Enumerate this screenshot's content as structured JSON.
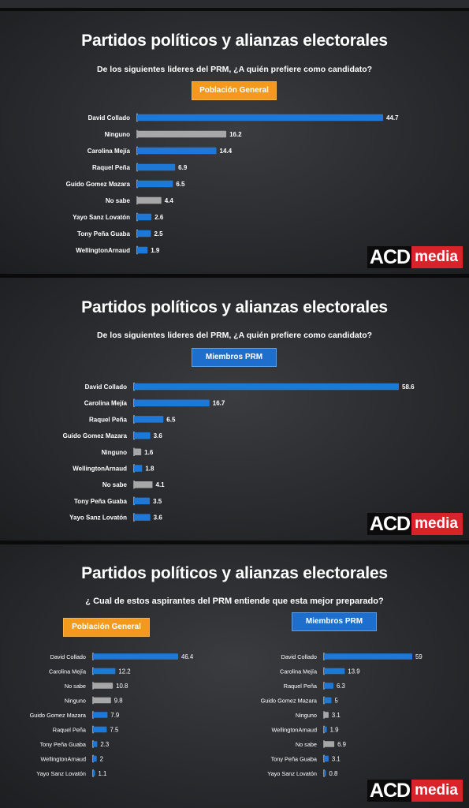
{
  "panels": [
    {
      "title": "Partidos políticos y alianzas electorales",
      "question": "De los siguientes lideres del PRM, ¿A quién prefiere como candidato?",
      "logo": {
        "brand": "ACD",
        "suffix": "media"
      }
    },
    {
      "title": "Partidos políticos y alianzas electorales",
      "question": "De los siguientes lideres del PRM, ¿A quién prefiere como candidato?",
      "logo": {
        "brand": "ACD",
        "suffix": "media"
      }
    },
    {
      "title": "Partidos políticos y alianzas electorales",
      "question": "¿ Cual de estos aspirantes del PRM entiende que esta mejor preparado?",
      "logo": {
        "brand": "ACD",
        "suffix": "media"
      }
    }
  ],
  "colors": {
    "blue": "#1e78d8",
    "gray": "#a7a7a7",
    "orange": "#f39a1d",
    "red": "#d8232a"
  },
  "chart_data": [
    {
      "type": "bar",
      "orientation": "horizontal",
      "segment": "Población General",
      "categories": [
        "David Collado",
        "Ninguno",
        "Carolina Mejía",
        "Raquel Peña",
        "Guido Gomez Mazara",
        "No sabe",
        "Yayo Sanz Lovatón",
        "Tony Peña Guaba",
        "WellingtonArnaud"
      ],
      "values": [
        44.7,
        16.2,
        14.4,
        6.9,
        6.5,
        4.4,
        2.6,
        2.5,
        1.9
      ],
      "value_labels": [
        "44.7",
        "16.2",
        "14.4",
        "6.9",
        "6.5",
        "4.4",
        "2.6",
        "2.5",
        "1.9"
      ],
      "highlight": [
        "blue",
        "gray",
        "blue",
        "blue",
        "blue",
        "gray",
        "blue",
        "blue",
        "blue"
      ],
      "xlim": [
        0,
        44.7
      ],
      "grid": false
    },
    {
      "type": "bar",
      "orientation": "horizontal",
      "segment": "Miembros PRM",
      "categories": [
        "David Collado",
        "Carolina Mejía",
        "Raquel Peña",
        "Guido Gomez Mazara",
        "Ninguno",
        "WellingtonArnaud",
        "No sabe",
        "Tony Peña Guaba",
        "Yayo Sanz Lovatón"
      ],
      "values": [
        58.6,
        16.7,
        6.5,
        3.6,
        1.6,
        1.8,
        4.1,
        3.5,
        3.6
      ],
      "value_labels": [
        "58.6",
        "16.7",
        "6.5",
        "3.6",
        "1.6",
        "1.8",
        "4.1",
        "3.5",
        "3.6"
      ],
      "highlight": [
        "blue",
        "blue",
        "blue",
        "blue",
        "gray",
        "blue",
        "gray",
        "blue",
        "blue"
      ],
      "xlim": [
        0,
        58.6
      ],
      "grid": false
    },
    {
      "type": "bar",
      "orientation": "horizontal",
      "segment": "Población General",
      "categories": [
        "David Collado",
        "Carolina Mejía",
        "No sabe",
        "Ninguno",
        "Guido Gomez Mazara",
        "Raquel Peña",
        "Tony Peña Guaba",
        "WellingtonArnaud",
        "Yayo Sanz Lovatón"
      ],
      "values": [
        46.4,
        12.2,
        10.8,
        9.8,
        7.9,
        7.5,
        2.3,
        2,
        1.1
      ],
      "value_labels": [
        "46.4",
        "12.2",
        "10.8",
        "9.8",
        "7.9",
        "7.5",
        "2.3",
        "2",
        "1.1"
      ],
      "highlight": [
        "blue",
        "blue",
        "gray",
        "gray",
        "blue",
        "blue",
        "blue",
        "blue",
        "blue"
      ],
      "xlim": [
        0,
        46.4
      ],
      "grid": false
    },
    {
      "type": "bar",
      "orientation": "horizontal",
      "segment": "Miembros PRM",
      "categories": [
        "David Collado",
        "Carolina Mejía",
        "Raquel Peña",
        "Guido Gomez Mazara",
        "Ninguno",
        "WellingtonArnaud",
        "No sabe",
        "Tony Peña Guaba",
        "Yayo Sanz Lovatón"
      ],
      "values": [
        59,
        13.9,
        6.3,
        5,
        3.1,
        1.9,
        6.9,
        3.1,
        0.8
      ],
      "value_labels": [
        "59",
        "13.9",
        "6.3",
        "5",
        "3.1",
        "1.9",
        "6.9",
        "3.1",
        "0.8"
      ],
      "highlight": [
        "blue",
        "blue",
        "blue",
        "blue",
        "gray",
        "blue",
        "gray",
        "blue",
        "blue"
      ],
      "xlim": [
        0,
        59
      ],
      "grid": false
    }
  ]
}
